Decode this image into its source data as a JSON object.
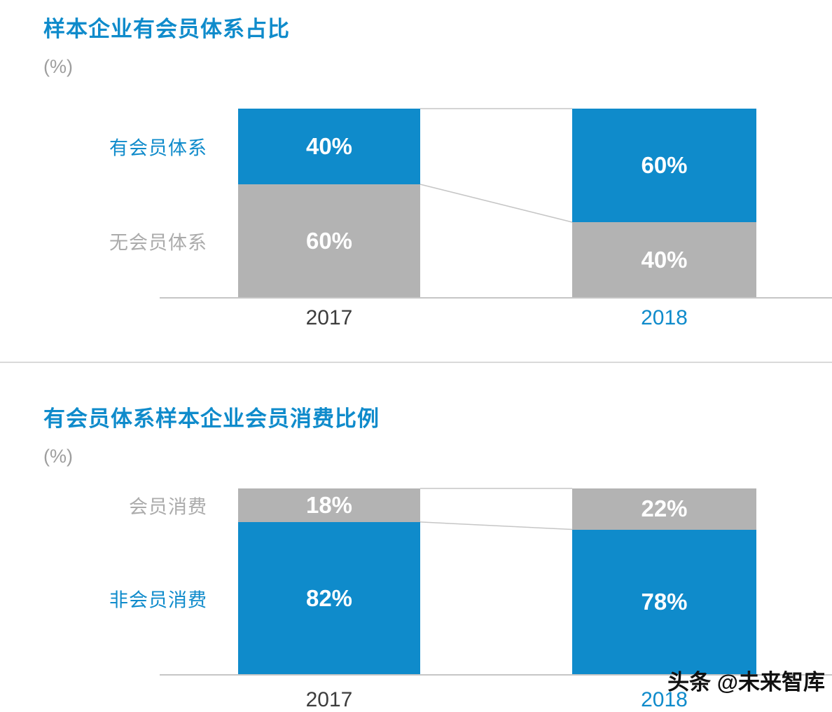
{
  "chart_data": [
    {
      "type": "bar",
      "variant": "100-percent-stacked-column",
      "title": "样本企业有会员体系占比",
      "unit": "(%)",
      "categories": [
        "2017",
        "2018"
      ],
      "category_colors": [
        "#3d3d3d",
        "#0f8bcb"
      ],
      "value_suffix": "%",
      "ylim": [
        0,
        100
      ],
      "legend_position": "left-of-bars",
      "grid": false,
      "series": [
        {
          "name": "有会员体系",
          "color": "#0f8bcb",
          "label_color": "#0f8bcb",
          "values": [
            40,
            60
          ]
        },
        {
          "name": "无会员体系",
          "color": "#b3b3b3",
          "label_color": "#ababab",
          "values": [
            60,
            40
          ]
        }
      ]
    },
    {
      "type": "bar",
      "variant": "100-percent-stacked-column",
      "title": "有会员体系样本企业会员消费比例",
      "unit": "(%)",
      "categories": [
        "2017",
        "2018"
      ],
      "category_colors": [
        "#3d3d3d",
        "#0f8bcb"
      ],
      "value_suffix": "%",
      "ylim": [
        0,
        100
      ],
      "legend_position": "left-of-bars",
      "grid": false,
      "series": [
        {
          "name": "会员消费",
          "color": "#b3b3b3",
          "label_color": "#ababab",
          "values": [
            18,
            22
          ]
        },
        {
          "name": "非会员消费",
          "color": "#0f8bcb",
          "label_color": "#0f8bcb",
          "values": [
            82,
            78
          ]
        }
      ]
    }
  ],
  "watermark": "头条 @未来智库",
  "colors": {
    "accent_blue": "#0f8bcb",
    "bar_gray": "#b3b3b3",
    "axis_line": "#c6c6c6",
    "divider": "#d9d9d9",
    "value_label_text": "#ffffff"
  }
}
